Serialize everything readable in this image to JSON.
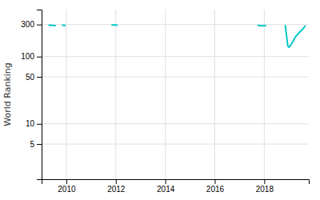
{
  "chart_data": {
    "type": "line",
    "ylabel": "World Ranking",
    "log": "y",
    "grid": true,
    "color": "#00c8c8",
    "xlim": [
      2009.0,
      2019.8
    ],
    "xticks": [
      2010,
      2012,
      2014,
      2016,
      2018
    ],
    "ylim": [
      1.5,
      500
    ],
    "yticks": [
      5,
      10,
      50,
      100,
      300
    ],
    "series": [
      {
        "x": [
          2009.3,
          2009.45,
          2009.55
        ],
        "values": [
          294,
          291,
          290
        ]
      },
      {
        "x": [
          2009.85,
          2009.95
        ],
        "values": [
          293,
          292
        ]
      },
      {
        "x": [
          2011.85,
          2011.95,
          2012.05
        ],
        "values": [
          296,
          295,
          294
        ]
      },
      {
        "x": [
          2017.75,
          2017.85,
          2017.95,
          2018.05
        ],
        "values": [
          291,
          288,
          287,
          289
        ]
      },
      {
        "x": [
          2018.85,
          2018.95,
          2019.0,
          2019.05,
          2019.15,
          2019.25,
          2019.35,
          2019.45,
          2019.55,
          2019.65
        ],
        "values": [
          289,
          145,
          138,
          145,
          165,
          195,
          215,
          235,
          255,
          285
        ]
      }
    ]
  }
}
